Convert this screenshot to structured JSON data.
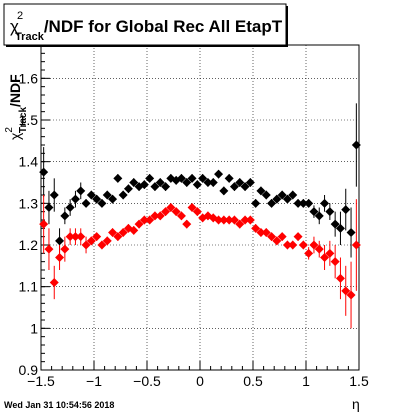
{
  "footer": {
    "timestamp": "Wed Jan 31 10:54:56 2018"
  },
  "chart_data": {
    "type": "scatter",
    "title_prefix": "χ",
    "title_sup": "2",
    "title_sub": "Track",
    "title_rest": "/NDF for Global Rec All EtapT",
    "xlabel": "η",
    "ylabel_prefix": "χ",
    "ylabel_sup": "2",
    "ylabel_sub": "Track",
    "ylabel_rest": "/NDF",
    "xlim": [
      -1.5,
      1.5
    ],
    "ylim": [
      0.9,
      1.68
    ],
    "grid": true,
    "x_ticks": [
      {
        "value": -1.5,
        "label": "−1.5"
      },
      {
        "value": -1,
        "label": "−1"
      },
      {
        "value": -0.5,
        "label": "−0.5"
      },
      {
        "value": 0,
        "label": "0"
      },
      {
        "value": 0.5,
        "label": "0.5"
      },
      {
        "value": 1,
        "label": "1"
      },
      {
        "value": 1.5,
        "label": "1.5"
      }
    ],
    "y_ticks": [
      {
        "value": 0.9,
        "label": "0.9"
      },
      {
        "value": 1.0,
        "label": "1"
      },
      {
        "value": 1.1,
        "label": "1.1"
      },
      {
        "value": 1.2,
        "label": "1.2"
      },
      {
        "value": 1.3,
        "label": "1.3"
      },
      {
        "value": 1.4,
        "label": "1.4"
      },
      {
        "value": 1.5,
        "label": "1.5"
      },
      {
        "value": 1.6,
        "label": "1.6"
      }
    ],
    "series": [
      {
        "color": "#000000",
        "x": [
          -1.475,
          -1.425,
          -1.375,
          -1.325,
          -1.275,
          -1.225,
          -1.175,
          -1.125,
          -1.075,
          -1.025,
          -0.975,
          -0.925,
          -0.875,
          -0.825,
          -0.775,
          -0.725,
          -0.675,
          -0.625,
          -0.575,
          -0.525,
          -0.475,
          -0.425,
          -0.375,
          -0.325,
          -0.275,
          -0.225,
          -0.175,
          -0.125,
          -0.075,
          -0.025,
          0.025,
          0.075,
          0.125,
          0.175,
          0.225,
          0.275,
          0.325,
          0.375,
          0.425,
          0.475,
          0.525,
          0.575,
          0.625,
          0.675,
          0.725,
          0.775,
          0.825,
          0.875,
          0.925,
          0.975,
          1.025,
          1.075,
          1.125,
          1.175,
          1.225,
          1.275,
          1.325,
          1.375,
          1.425,
          1.475
        ],
        "y": [
          1.375,
          1.29,
          1.32,
          1.21,
          1.27,
          1.29,
          1.31,
          1.33,
          1.3,
          1.32,
          1.31,
          1.3,
          1.32,
          1.31,
          1.36,
          1.32,
          1.335,
          1.35,
          1.34,
          1.345,
          1.36,
          1.34,
          1.35,
          1.34,
          1.36,
          1.355,
          1.36,
          1.35,
          1.36,
          1.345,
          1.36,
          1.35,
          1.35,
          1.37,
          1.33,
          1.36,
          1.34,
          1.35,
          1.34,
          1.35,
          1.3,
          1.33,
          1.32,
          1.3,
          1.31,
          1.32,
          1.31,
          1.32,
          1.3,
          1.3,
          1.3,
          1.28,
          1.27,
          1.3,
          1.28,
          1.25,
          1.24,
          1.285,
          1.23,
          1.44
        ],
        "err": [
          0.06,
          0.04,
          0.04,
          0.03,
          0.02,
          0.02,
          0.02,
          0.02,
          0.01,
          0.01,
          0.01,
          0.01,
          0.01,
          0.01,
          0.01,
          0.01,
          0.01,
          0.01,
          0.01,
          0.01,
          0.01,
          0.01,
          0.01,
          0.01,
          0.01,
          0.01,
          0.01,
          0.01,
          0.01,
          0.01,
          0.01,
          0.01,
          0.01,
          0.01,
          0.01,
          0.01,
          0.01,
          0.01,
          0.01,
          0.01,
          0.01,
          0.01,
          0.01,
          0.01,
          0.01,
          0.01,
          0.01,
          0.01,
          0.01,
          0.01,
          0.01,
          0.015,
          0.02,
          0.02,
          0.02,
          0.03,
          0.04,
          0.05,
          0.06,
          0.1
        ]
      },
      {
        "color": "#ff0000",
        "x": [
          -1.475,
          -1.425,
          -1.375,
          -1.325,
          -1.275,
          -1.225,
          -1.175,
          -1.125,
          -1.075,
          -1.025,
          -0.975,
          -0.925,
          -0.875,
          -0.825,
          -0.775,
          -0.725,
          -0.675,
          -0.625,
          -0.575,
          -0.525,
          -0.475,
          -0.425,
          -0.375,
          -0.325,
          -0.275,
          -0.225,
          -0.175,
          -0.125,
          -0.075,
          -0.025,
          0.025,
          0.075,
          0.125,
          0.175,
          0.225,
          0.275,
          0.325,
          0.375,
          0.425,
          0.475,
          0.525,
          0.575,
          0.625,
          0.675,
          0.725,
          0.775,
          0.825,
          0.875,
          0.925,
          0.975,
          1.025,
          1.075,
          1.125,
          1.175,
          1.225,
          1.275,
          1.325,
          1.375,
          1.425,
          1.475
        ],
        "y": [
          1.25,
          1.19,
          1.11,
          1.17,
          1.19,
          1.22,
          1.22,
          1.22,
          1.2,
          1.21,
          1.22,
          1.2,
          1.21,
          1.23,
          1.22,
          1.23,
          1.24,
          1.235,
          1.25,
          1.26,
          1.26,
          1.27,
          1.27,
          1.28,
          1.29,
          1.28,
          1.27,
          1.25,
          1.29,
          1.28,
          1.265,
          1.27,
          1.265,
          1.26,
          1.26,
          1.26,
          1.26,
          1.25,
          1.26,
          1.26,
          1.24,
          1.23,
          1.23,
          1.22,
          1.21,
          1.22,
          1.2,
          1.2,
          1.22,
          1.2,
          1.18,
          1.2,
          1.19,
          1.17,
          1.18,
          1.16,
          1.12,
          1.09,
          1.08,
          1.2
        ],
        "err": [
          0.07,
          0.05,
          0.04,
          0.03,
          0.03,
          0.02,
          0.02,
          0.02,
          0.02,
          0.01,
          0.01,
          0.01,
          0.01,
          0.01,
          0.01,
          0.01,
          0.01,
          0.01,
          0.01,
          0.01,
          0.01,
          0.01,
          0.01,
          0.01,
          0.01,
          0.01,
          0.01,
          0.01,
          0.01,
          0.01,
          0.01,
          0.01,
          0.01,
          0.01,
          0.01,
          0.01,
          0.01,
          0.01,
          0.01,
          0.01,
          0.01,
          0.01,
          0.01,
          0.01,
          0.01,
          0.01,
          0.01,
          0.01,
          0.01,
          0.01,
          0.015,
          0.02,
          0.02,
          0.03,
          0.03,
          0.04,
          0.05,
          0.06,
          0.08,
          0.11
        ]
      }
    ]
  }
}
